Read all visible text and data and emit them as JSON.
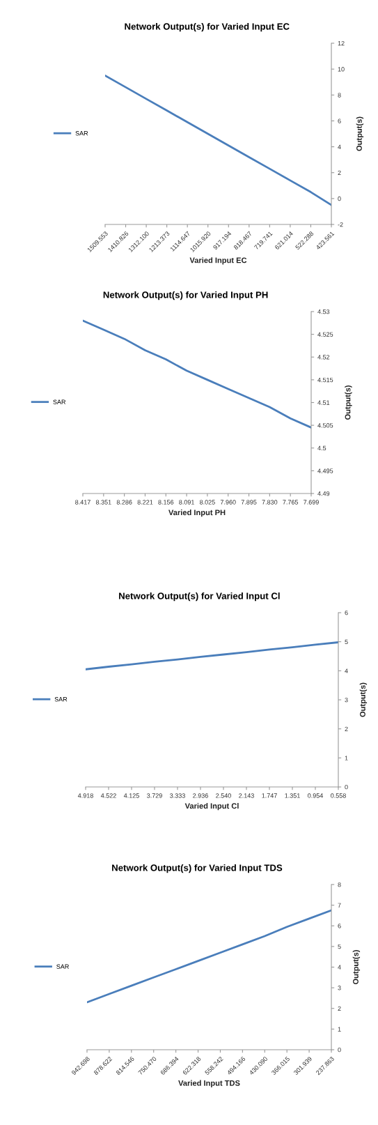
{
  "chart_data": [
    {
      "type": "line",
      "title": "Network Output(s) for Varied Input EC",
      "xlabel": "Varied Input EC",
      "ylabel": "Output(s)",
      "categories": [
        "1509.553",
        "1410.826",
        "1312.100",
        "1213.373",
        "1114.647",
        "1015.920",
        "917.194",
        "818.467",
        "719.741",
        "621.014",
        "522.288",
        "423.561"
      ],
      "series": [
        {
          "name": "SAR",
          "color": "#4a7ebb",
          "values": [
            9.5,
            8.6,
            7.7,
            6.8,
            5.9,
            5.0,
            4.1,
            3.2,
            2.3,
            1.4,
            0.5,
            -0.5
          ]
        }
      ],
      "ylim": [
        -2,
        12
      ],
      "yticks": [
        -2,
        0,
        2,
        4,
        6,
        8,
        10,
        12
      ],
      "grid": false,
      "legend": "left",
      "marker": "none",
      "line_style": "solid"
    },
    {
      "type": "line",
      "title": "Network Output(s) for Varied Input PH",
      "xlabel": "Varied Input PH",
      "ylabel": "Output(s)",
      "categories": [
        "8.417",
        "8.351",
        "8.286",
        "8.221",
        "8.156",
        "8.091",
        "8.025",
        "7.960",
        "7.895",
        "7.830",
        "7.765",
        "7.699"
      ],
      "series": [
        {
          "name": "SAR",
          "color": "#4a7ebb",
          "values": [
            4.528,
            4.526,
            4.524,
            4.5215,
            4.5195,
            4.517,
            4.515,
            4.513,
            4.511,
            4.509,
            4.5065,
            4.5045
          ]
        }
      ],
      "ylim": [
        4.49,
        4.53
      ],
      "yticks": [
        4.49,
        4.495,
        4.5,
        4.505,
        4.51,
        4.515,
        4.52,
        4.525,
        4.53
      ],
      "grid": false,
      "legend": "left",
      "marker": "none",
      "line_style": "solid"
    },
    {
      "type": "line",
      "title": "Network Output(s) for Varied Input Cl",
      "xlabel": "Varied Input Cl",
      "ylabel": "Output(s)",
      "categories": [
        "4.918",
        "4.522",
        "4.125",
        "3.729",
        "3.333",
        "2.936",
        "2.540",
        "2.143",
        "1.747",
        "1.351",
        "0.954",
        "0.558"
      ],
      "series": [
        {
          "name": "SAR",
          "color": "#4a7ebb",
          "values": [
            4.05,
            4.14,
            4.22,
            4.31,
            4.39,
            4.48,
            4.56,
            4.64,
            4.73,
            4.81,
            4.9,
            4.98
          ]
        }
      ],
      "ylim": [
        0,
        6
      ],
      "yticks": [
        0,
        1,
        2,
        3,
        4,
        5,
        6
      ],
      "grid": false,
      "legend": "left",
      "marker": "none",
      "line_style": "solid"
    },
    {
      "type": "line",
      "title": "Network Output(s) for Varied Input TDS",
      "xlabel": "Varied Input TDS",
      "ylabel": "Output(s)",
      "categories": [
        "942.698",
        "878.622",
        "814.546",
        "750.470",
        "686.394",
        "622.318",
        "558.242",
        "494.166",
        "430.090",
        "366.015",
        "301.939",
        "237.863"
      ],
      "series": [
        {
          "name": "SAR",
          "color": "#4a7ebb",
          "values": [
            2.3,
            2.7,
            3.1,
            3.5,
            3.9,
            4.3,
            4.7,
            5.1,
            5.5,
            5.95,
            6.35,
            6.75
          ]
        }
      ],
      "ylim": [
        0,
        8
      ],
      "yticks": [
        0,
        1,
        2,
        3,
        4,
        5,
        6,
        7,
        8
      ],
      "grid": false,
      "legend": "left",
      "marker": "none",
      "line_style": "solid"
    }
  ]
}
